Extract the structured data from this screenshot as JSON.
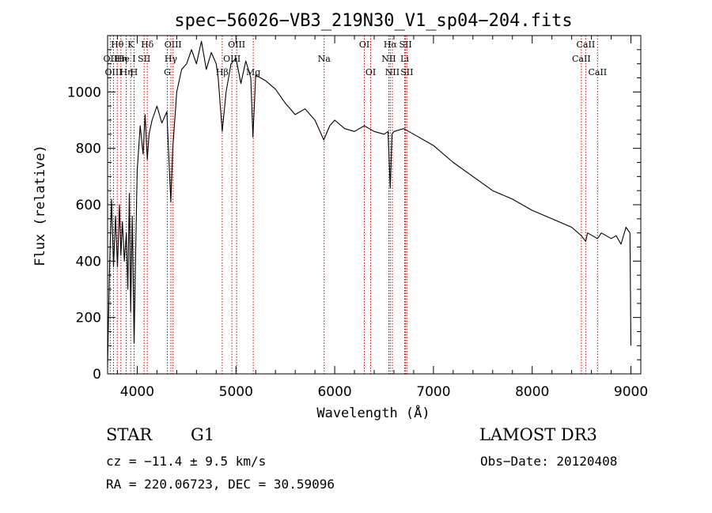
{
  "chart_data": {
    "type": "line",
    "title": "spec−56026−VB3_219N30_V1_sp04−204.fits",
    "xlabel": "Wavelength (Å)",
    "ylabel": "Flux (relative)",
    "xlim": [
      3700,
      9100
    ],
    "ylim": [
      0,
      1200
    ],
    "xticks": [
      4000,
      5000,
      6000,
      7000,
      8000,
      9000
    ],
    "xtick_labels": [
      "4000",
      "5000",
      "6000",
      "7000",
      "8000",
      "9000"
    ],
    "yticks": [
      0,
      200,
      400,
      600,
      800,
      1000
    ],
    "ytick_labels": [
      "0",
      "200",
      "400",
      "600",
      "800",
      "1000"
    ],
    "x_minor_step": 200,
    "y_minor_step": 50,
    "grid": false,
    "series": [
      {
        "name": "flux",
        "x": [
          3700,
          3720,
          3740,
          3760,
          3780,
          3800,
          3820,
          3835,
          3850,
          3870,
          3890,
          3905,
          3920,
          3934,
          3950,
          3968,
          3985,
          4000,
          4030,
          4060,
          4080,
          4102,
          4120,
          4150,
          4200,
          4250,
          4300,
          4340,
          4360,
          4400,
          4450,
          4500,
          4550,
          4600,
          4650,
          4700,
          4750,
          4800,
          4820,
          4861,
          4900,
          4950,
          5000,
          5050,
          5100,
          5150,
          5172,
          5200,
          5300,
          5400,
          5500,
          5600,
          5700,
          5800,
          5890,
          5950,
          6000,
          6100,
          6200,
          6300,
          6400,
          6500,
          6540,
          6563,
          6580,
          6600,
          6700,
          6800,
          7000,
          7200,
          7400,
          7600,
          7800,
          8000,
          8200,
          8400,
          8498,
          8542,
          8560,
          8662,
          8700,
          8800,
          8850,
          8900,
          8950,
          8990,
          9000
        ],
        "y": [
          30,
          380,
          620,
          380,
          560,
          380,
          600,
          420,
          540,
          400,
          500,
          300,
          640,
          220,
          560,
          110,
          450,
          720,
          880,
          780,
          920,
          760,
          850,
          900,
          950,
          890,
          930,
          610,
          800,
          1000,
          1080,
          1100,
          1150,
          1100,
          1180,
          1080,
          1140,
          1100,
          1050,
          860,
          1000,
          1100,
          1120,
          1030,
          1110,
          1050,
          840,
          1060,
          1040,
          1010,
          960,
          920,
          940,
          900,
          830,
          880,
          900,
          870,
          860,
          880,
          860,
          850,
          860,
          660,
          850,
          860,
          870,
          850,
          810,
          750,
          700,
          650,
          620,
          580,
          550,
          520,
          490,
          470,
          500,
          480,
          500,
          480,
          490,
          460,
          520,
          500,
          100
        ]
      }
    ],
    "line_markers": [
      {
        "label": "Hθ",
        "wl": 3798,
        "row": 0
      },
      {
        "label": "OII",
        "wl": 3727,
        "row": 1
      },
      {
        "label": "OIII",
        "wl": 3760,
        "row": 2
      },
      {
        "label": "Hη",
        "wl": 3835,
        "row": 1
      },
      {
        "label": "He I",
        "wl": 3889,
        "row": 1
      },
      {
        "label": "Hη",
        "wl": 3889,
        "row": 2
      },
      {
        "label": "K",
        "wl": 3934,
        "row": 0
      },
      {
        "label": "SII",
        "wl": 4070,
        "row": 1
      },
      {
        "label": "H",
        "wl": 3968,
        "row": 2
      },
      {
        "label": "Hδ",
        "wl": 4102,
        "row": 0
      },
      {
        "label": "OIII",
        "wl": 4363,
        "row": 0
      },
      {
        "label": "Hγ",
        "wl": 4341,
        "row": 1
      },
      {
        "label": "G",
        "wl": 4305,
        "row": 2
      },
      {
        "label": "Hβ",
        "wl": 4861,
        "row": 2
      },
      {
        "label": "OIII",
        "wl": 5007,
        "row": 0
      },
      {
        "label": "OIII",
        "wl": 4959,
        "row": 1
      },
      {
        "label": "Mg",
        "wl": 5175,
        "row": 2
      },
      {
        "label": "Na",
        "wl": 5893,
        "row": 1
      },
      {
        "label": "OI",
        "wl": 6300,
        "row": 0
      },
      {
        "label": "OI",
        "wl": 6364,
        "row": 2
      },
      {
        "label": "Hα",
        "wl": 6563,
        "row": 0
      },
      {
        "label": "NII",
        "wl": 6548,
        "row": 1
      },
      {
        "label": "NII",
        "wl": 6584,
        "row": 2
      },
      {
        "label": "SII",
        "wl": 6717,
        "row": 0
      },
      {
        "label": "Li",
        "wl": 6708,
        "row": 1
      },
      {
        "label": "SII",
        "wl": 6731,
        "row": 2
      },
      {
        "label": "CaII",
        "wl": 8542,
        "row": 0
      },
      {
        "label": "CaII",
        "wl": 8498,
        "row": 1
      },
      {
        "label": "CaII",
        "wl": 8662,
        "row": 2
      }
    ]
  },
  "info": {
    "object_class": "STAR",
    "subclass": "G1",
    "survey": "LAMOST DR3",
    "cz": "cz = −11.4 ± 9.5 km/s",
    "obs_date": "Obs−Date: 20120408",
    "coords": "RA = 220.06723, DEC =  30.59096"
  },
  "colors": {
    "marker_line": "#cc0000",
    "spectrum": "#000000"
  }
}
